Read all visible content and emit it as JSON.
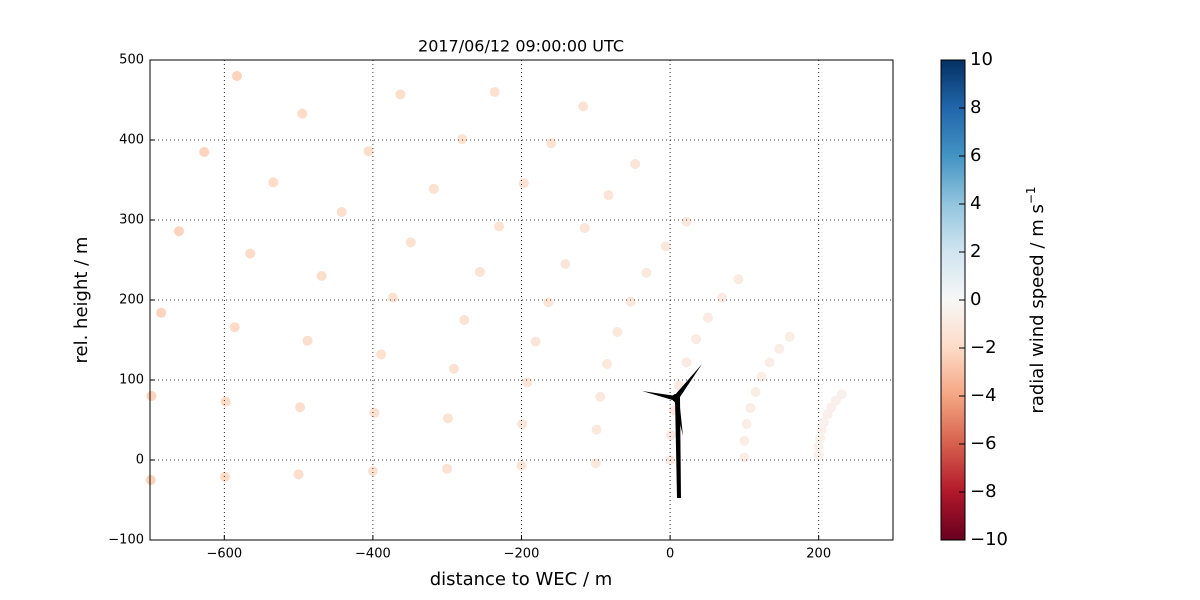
{
  "chart_data": {
    "type": "scatter",
    "title": "2017/06/12 09:00:00 UTC",
    "x_label": "distance to WEC / m",
    "y_label": "rel. height / m",
    "colorbar_label": "radial wind speed / m s",
    "colorbar_label_sup": "−1",
    "xlim": [
      -700,
      300
    ],
    "ylim": [
      -100,
      500
    ],
    "xticks": [
      {
        "value": -600,
        "label": "−600"
      },
      {
        "value": -400,
        "label": "−400"
      },
      {
        "value": -200,
        "label": "−200"
      },
      0,
      200
    ],
    "yticks": [
      {
        "value": -100,
        "label": "−100"
      },
      0,
      100,
      200,
      300,
      400,
      500
    ],
    "clim": [
      -10,
      10
    ],
    "cticks": [
      {
        "value": -10,
        "label": "−10"
      },
      {
        "value": -8,
        "label": "−8"
      },
      {
        "value": -6,
        "label": "−6"
      },
      {
        "value": -4,
        "label": "−4"
      },
      {
        "value": -2,
        "label": "−2"
      },
      0,
      2,
      4,
      6,
      8,
      10
    ],
    "colormap": [
      "#67001f",
      "#b2182b",
      "#d6604d",
      "#f4a582",
      "#fddbc7",
      "#f7f7f7",
      "#d1e5f0",
      "#92c5de",
      "#4393c3",
      "#2166ac",
      "#053061"
    ],
    "grid": true,
    "x": [
      200,
      100,
      0,
      -100,
      -200,
      -300,
      -400,
      -500,
      -599,
      -699,
      200,
      100,
      1,
      -99,
      -199,
      -299,
      -398,
      -498,
      -598,
      -698,
      202,
      103,
      5,
      -94,
      -192,
      -291,
      -389,
      -488,
      -586,
      -685,
      204,
      108,
      12,
      -85,
      -181,
      -277,
      -373,
      -469,
      -565,
      -661,
      207,
      115,
      22,
      -71,
      -164,
      -256,
      -349,
      -442,
      -534,
      -627,
      212,
      123,
      35,
      -53,
      -141,
      -230,
      -318,
      -406,
      -495,
      -583,
      217,
      134,
      51,
      -32,
      -115,
      -197,
      -280,
      -363,
      223,
      147,
      70,
      -6,
      -83,
      -160,
      -236,
      231,
      161,
      92,
      22,
      -47,
      -117
    ],
    "y": [
      7,
      3,
      0,
      -4,
      -7,
      -11,
      -14,
      -18,
      -21,
      -25,
      17,
      24,
      31,
      38,
      45,
      52,
      59,
      66,
      73,
      80,
      27,
      45,
      62,
      79,
      97,
      114,
      132,
      149,
      166,
      184,
      38,
      65,
      93,
      120,
      148,
      175,
      203,
      230,
      258,
      286,
      47,
      85,
      122,
      160,
      197,
      235,
      272,
      310,
      347,
      385,
      57,
      104,
      151,
      198,
      245,
      292,
      339,
      386,
      433,
      480,
      66,
      122,
      178,
      234,
      290,
      346,
      401,
      457,
      74,
      139,
      203,
      267,
      331,
      396,
      460,
      82,
      154,
      226,
      298,
      370,
      442
    ],
    "values": [
      -0.5,
      -0.7,
      -0.9,
      -1.1,
      -1.3,
      -1.5,
      -1.6,
      -1.8,
      -2.0,
      -2.3,
      -0.5,
      -0.7,
      -0.9,
      -1.1,
      -1.3,
      -1.5,
      -1.6,
      -1.8,
      -2.0,
      -2.3,
      -0.5,
      -0.7,
      -0.9,
      -1.1,
      -1.3,
      -1.5,
      -1.6,
      -1.8,
      -2.0,
      -2.3,
      -0.5,
      -0.7,
      -0.9,
      -1.1,
      -1.3,
      -1.5,
      -1.6,
      -1.8,
      -2.0,
      -2.3,
      -0.5,
      -0.7,
      -0.9,
      -1.1,
      -1.3,
      -1.5,
      -1.6,
      -1.8,
      -2.0,
      -2.3,
      -0.5,
      -0.7,
      -0.9,
      -1.1,
      -1.3,
      -1.5,
      -1.6,
      -1.8,
      -2.0,
      -2.3,
      -0.5,
      -0.7,
      -0.9,
      -1.1,
      -1.3,
      -1.5,
      -1.6,
      -1.8,
      -0.5,
      -0.7,
      -0.9,
      -1.1,
      -1.3,
      -1.5,
      -1.6,
      -0.5,
      -0.7,
      -0.9,
      -1.1,
      -1.3,
      -1.5
    ]
  }
}
